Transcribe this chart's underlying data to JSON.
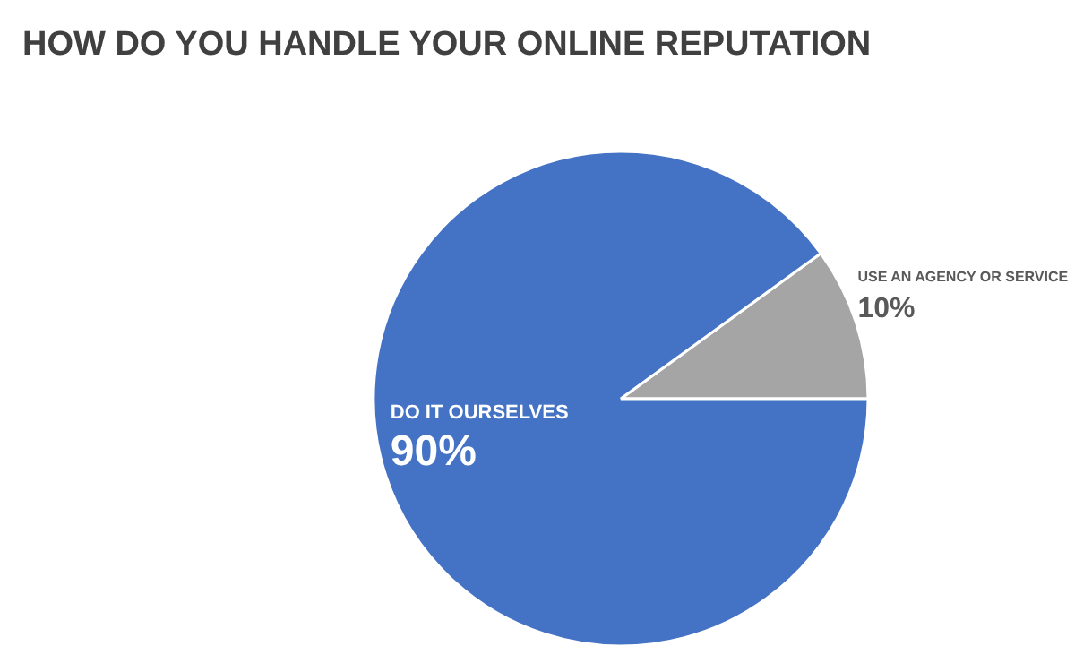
{
  "chart_data": {
    "type": "pie",
    "title": "HOW DO YOU HANDLE YOUR ONLINE REPUTATION",
    "categories": [
      "USE AN AGENCY OR SERVICE",
      "DO IT OURSELVES"
    ],
    "values": [
      10,
      90
    ],
    "colors": [
      "#a5a5a5",
      "#4472c4"
    ],
    "value_labels": [
      "10%",
      "90%"
    ],
    "legend": false
  }
}
